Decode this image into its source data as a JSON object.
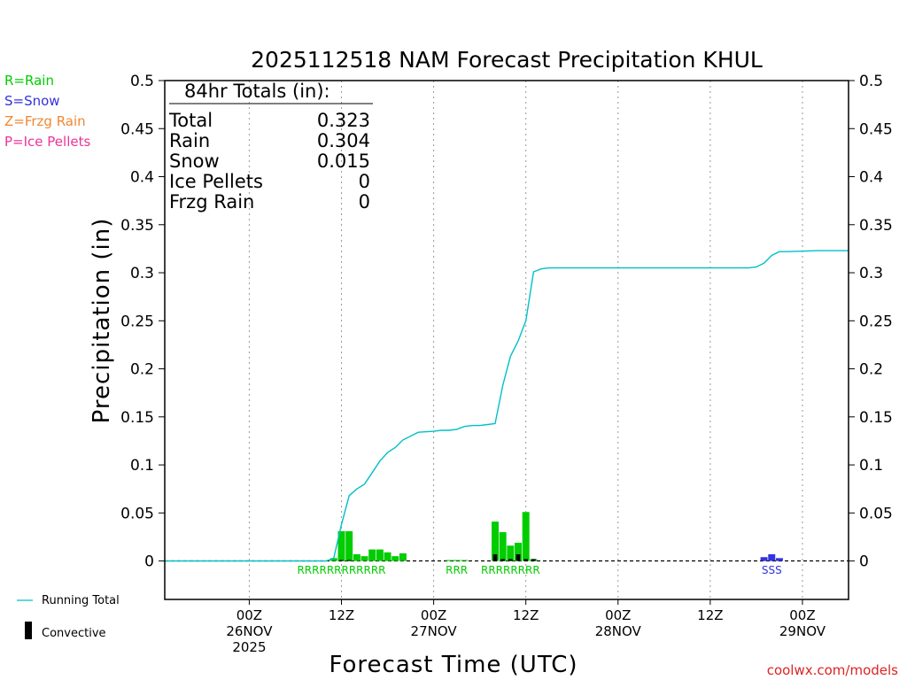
{
  "chart_data": {
    "type": "bar",
    "title": "2025112518 NAM Forecast Precipitation KHUL",
    "xlabel": "Forecast Time (UTC)",
    "ylabel": "Precipitation (in)",
    "ylim": [
      -0.04,
      0.5
    ],
    "yticks": [
      {
        "value": 0,
        "label": "0"
      },
      {
        "value": 0.05,
        "label": "0.05"
      },
      {
        "value": 0.1,
        "label": "0.1"
      },
      {
        "value": 0.15,
        "label": "0.15"
      },
      {
        "value": 0.2,
        "label": "0.2"
      },
      {
        "value": 0.25,
        "label": "0.25"
      },
      {
        "value": 0.3,
        "label": "0.3"
      },
      {
        "value": 0.35,
        "label": "0.35"
      },
      {
        "value": 0.4,
        "label": "0.4"
      },
      {
        "value": 0.45,
        "label": "0.45"
      },
      {
        "value": 0.5,
        "label": "0.5"
      }
    ],
    "x_unit": "forecast hour",
    "xlim": [
      -5,
      84
    ],
    "xticks": [
      {
        "hour": 6,
        "lines": [
          "00Z",
          "26NOV",
          "2025"
        ]
      },
      {
        "hour": 18,
        "lines": [
          "12Z"
        ]
      },
      {
        "hour": 30,
        "lines": [
          "00Z",
          "27NOV"
        ]
      },
      {
        "hour": 42,
        "lines": [
          "12Z"
        ]
      },
      {
        "hour": 54,
        "lines": [
          "00Z",
          "28NOV"
        ]
      },
      {
        "hour": 66,
        "lines": [
          "12Z"
        ]
      },
      {
        "hour": 78,
        "lines": [
          "00Z",
          "29NOV"
        ]
      }
    ],
    "totals_box": {
      "heading": "84hr Totals (in):",
      "rows": [
        {
          "label": "Total",
          "value": "0.323"
        },
        {
          "label": "Rain",
          "value": "0.304"
        },
        {
          "label": "Snow",
          "value": "0.015"
        },
        {
          "label": "Ice Pellets",
          "value": "0"
        },
        {
          "label": "Frzg Rain",
          "value": "0"
        }
      ]
    },
    "precip_type_legend": [
      {
        "text": "R=Rain",
        "color": "#00cc00"
      },
      {
        "text": "S=Snow",
        "color": "#3333dd"
      },
      {
        "text": "Z=Frzg Rain",
        "color": "#ee8833"
      },
      {
        "text": "P=Ice Pellets",
        "color": "#ee3399"
      }
    ],
    "series_legend": [
      {
        "text": "Running Total",
        "kind": "line",
        "color": "#00c0c8"
      },
      {
        "text": "Convective",
        "kind": "bar",
        "color": "#000000"
      }
    ],
    "type_labels": [
      {
        "hour": 18,
        "text": "RRRRRRRRRRRR",
        "color": "#00cc00"
      },
      {
        "hour": 33,
        "text": "RRR",
        "color": "#00cc00"
      },
      {
        "hour": 40,
        "text": "RRRRRRRR",
        "color": "#00cc00"
      },
      {
        "hour": 74,
        "text": "SSS",
        "color": "#3333dd"
      }
    ],
    "series": [
      {
        "name": "Hourly Rain",
        "color": "#00cc00",
        "hours": [
          17,
          18,
          19,
          20,
          21,
          22,
          23,
          24,
          25,
          26,
          32,
          33,
          34,
          38,
          39,
          40,
          41,
          42,
          43
        ],
        "values": [
          0.003,
          0.031,
          0.031,
          0.007,
          0.005,
          0.012,
          0.012,
          0.009,
          0.005,
          0.008,
          0.001,
          0.001,
          0.001,
          0.041,
          0.03,
          0.016,
          0.019,
          0.051,
          0.002
        ]
      },
      {
        "name": "Hourly Snow",
        "color": "#3333dd",
        "hours": [
          73,
          74,
          75
        ],
        "values": [
          0.004,
          0.007,
          0.003
        ]
      },
      {
        "name": "Convective",
        "color": "#000000",
        "hours": [
          18,
          19,
          38,
          39,
          40,
          41,
          42,
          43
        ],
        "values": [
          0.001,
          0.001,
          0.007,
          0.002,
          0.002,
          0.007,
          0.002,
          0.002
        ]
      },
      {
        "name": "Running Total",
        "color": "#00c0c8",
        "hours": [
          -5,
          16,
          17,
          18,
          19,
          20,
          21,
          22,
          23,
          24,
          25,
          26,
          28,
          30,
          31,
          32,
          33,
          34,
          35,
          36,
          37,
          38,
          39,
          40,
          41,
          42,
          43,
          44,
          45,
          50,
          60,
          70,
          71,
          72,
          73,
          74,
          75,
          76,
          80,
          84
        ],
        "values": [
          0,
          0,
          0.003,
          0.038,
          0.068,
          0.075,
          0.08,
          0.092,
          0.104,
          0.113,
          0.118,
          0.126,
          0.134,
          0.135,
          0.136,
          0.136,
          0.137,
          0.14,
          0.141,
          0.141,
          0.142,
          0.143,
          0.183,
          0.213,
          0.229,
          0.25,
          0.301,
          0.304,
          0.305,
          0.305,
          0.305,
          0.305,
          0.305,
          0.306,
          0.31,
          0.318,
          0.322,
          0.322,
          0.323,
          0.323
        ]
      }
    ],
    "credit": "coolwx.com/models"
  }
}
